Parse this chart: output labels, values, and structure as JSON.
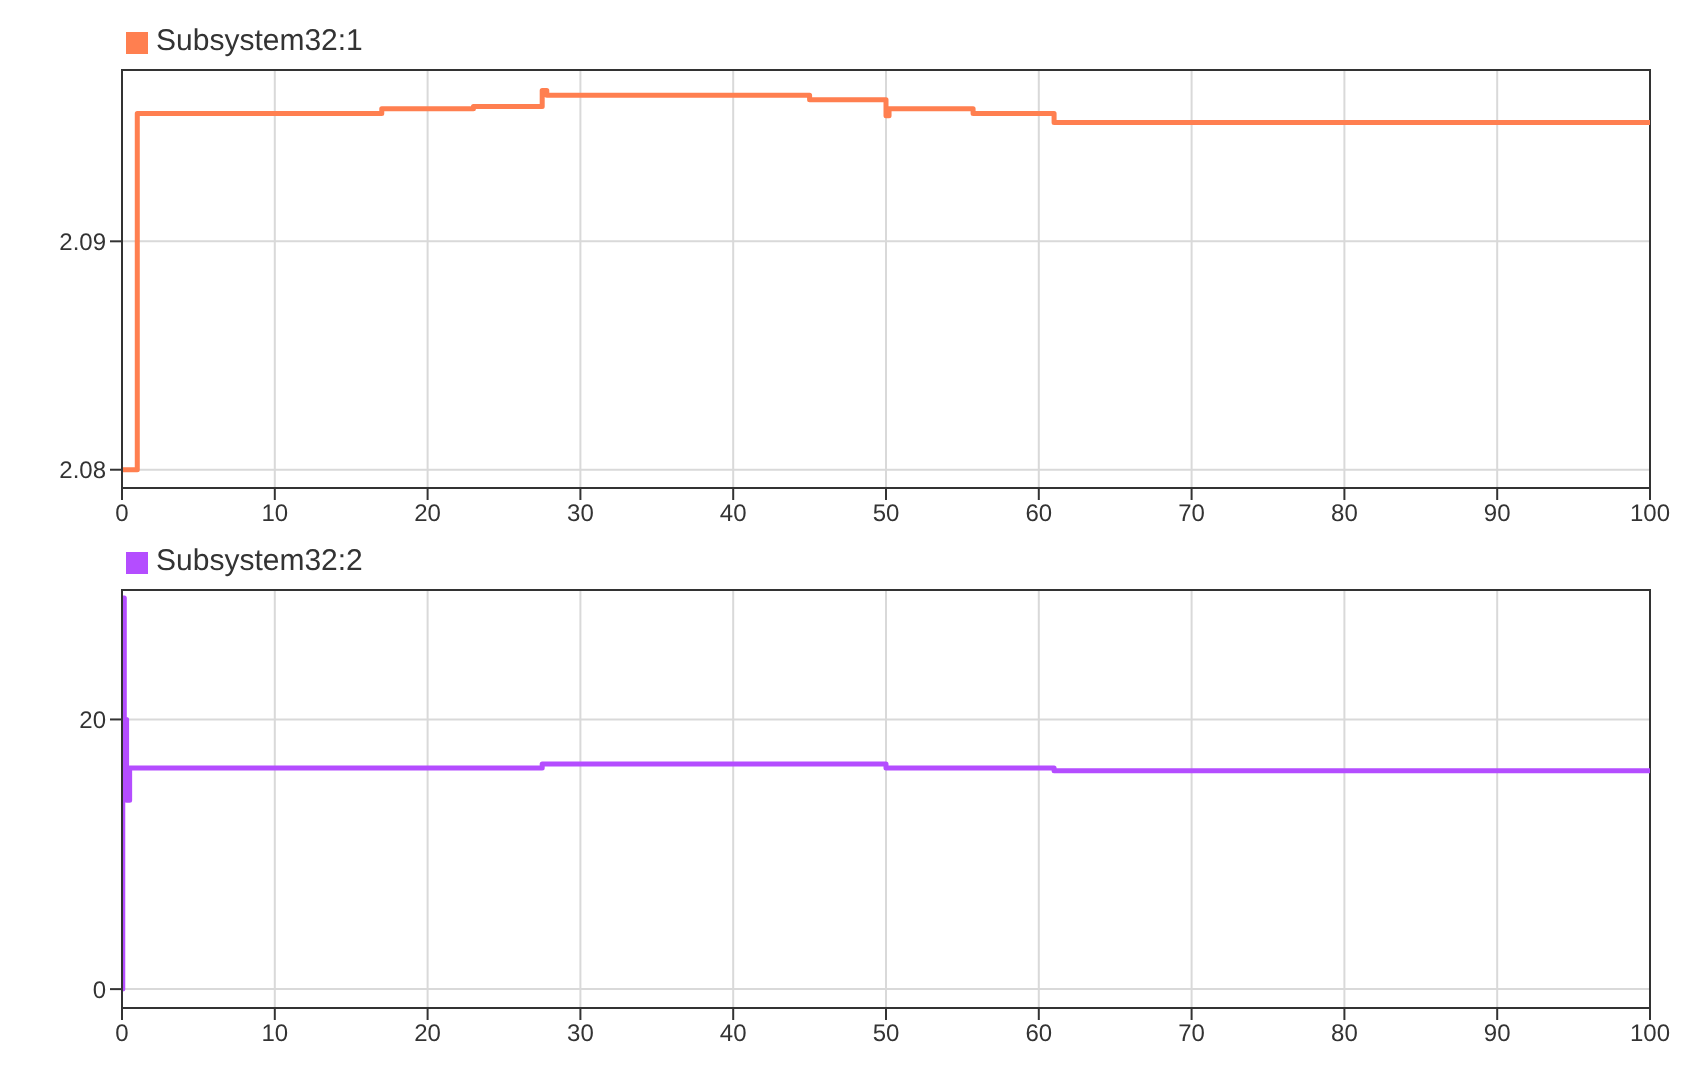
{
  "chart_data": [
    {
      "type": "step",
      "series": [
        {
          "name": "Subsystem32:1",
          "color": "#ff7f50",
          "x": [
            0,
            1,
            17,
            23,
            27.5,
            27.8,
            33,
            45,
            50,
            50.2,
            55.7,
            61,
            100
          ],
          "values": [
            2.08,
            2.0956,
            2.0958,
            2.0959,
            2.0966,
            2.0964,
            2.0964,
            2.0962,
            2.0955,
            2.0958,
            2.0956,
            2.0952,
            2.0952
          ]
        }
      ],
      "xlim": [
        0,
        100
      ],
      "xticks": [
        0,
        10,
        20,
        30,
        40,
        50,
        60,
        70,
        80,
        90,
        100
      ],
      "ylim": [
        2.0792,
        2.0975
      ],
      "yticks": [
        2.08,
        2.09
      ],
      "grid": true,
      "legend": "top left"
    },
    {
      "type": "step",
      "series": [
        {
          "name": "Subsystem32:2",
          "color": "#b44dff",
          "x": [
            0,
            0.05,
            0.15,
            0.3,
            0.5,
            27.5,
            50,
            61,
            100
          ],
          "values": [
            0,
            29,
            20,
            14,
            16.4,
            16.7,
            16.4,
            16.2,
            16.2
          ]
        }
      ],
      "xlim": [
        0,
        100
      ],
      "xticks": [
        0,
        10,
        20,
        30,
        40,
        50,
        60,
        70,
        80,
        90,
        100
      ],
      "ylim": [
        -1.4,
        29.6
      ],
      "yticks": [
        0,
        20
      ],
      "grid": true,
      "legend": "top left"
    }
  ]
}
